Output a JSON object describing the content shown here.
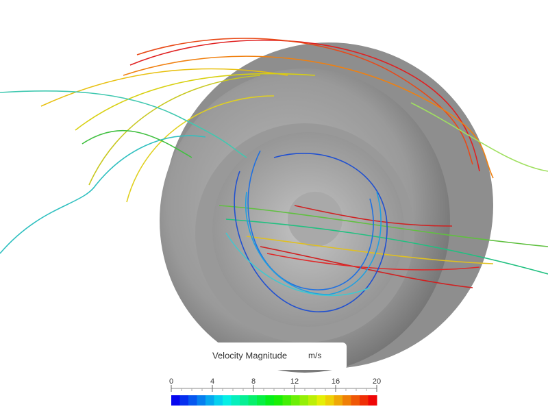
{
  "legend": {
    "title": "Velocity Magnitude",
    "unit": "m/s",
    "range": [
      0,
      20
    ],
    "ticks": [
      0,
      4,
      8,
      12,
      16,
      20
    ]
  }
}
